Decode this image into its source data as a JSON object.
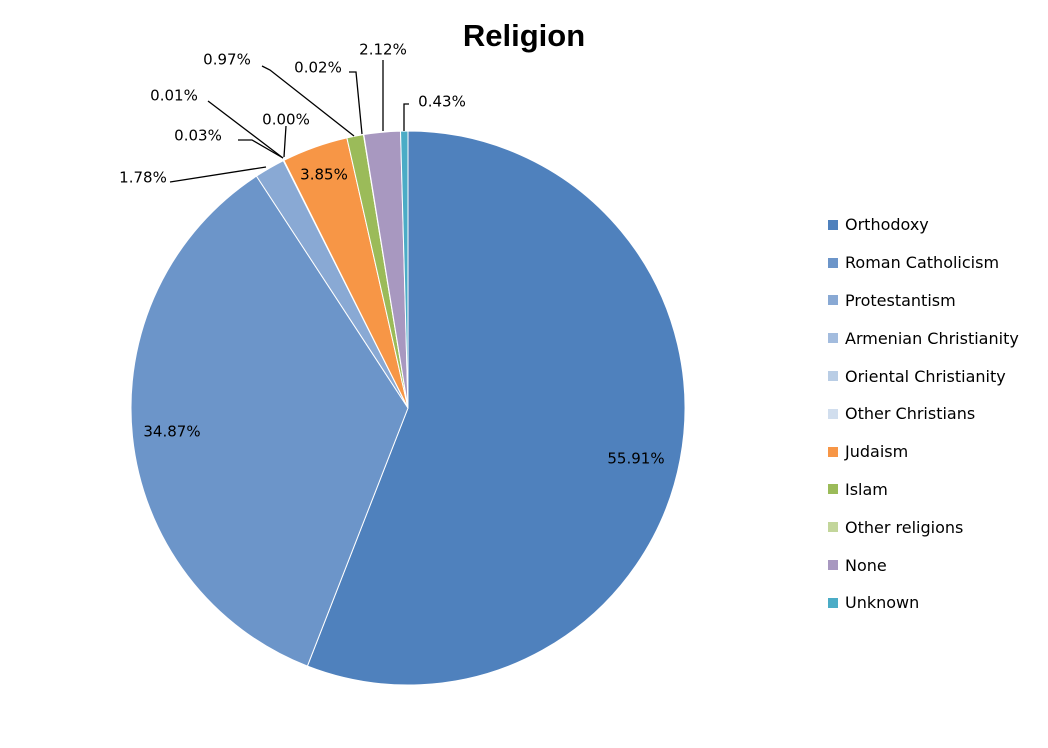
{
  "chart_data": {
    "type": "pie",
    "title": "Religion",
    "legend_position": "right",
    "start_angle": "12 o'clock, clockwise",
    "slices": [
      {
        "label": "Orthodoxy",
        "value": 55.91,
        "value_label": "55.91%",
        "color": "#4F81BD"
      },
      {
        "label": "Roman Catholicism",
        "value": 34.87,
        "value_label": "34.87%",
        "color": "#6C95C9"
      },
      {
        "label": "Protestantism",
        "value": 1.78,
        "value_label": "1.78%",
        "color": "#89A9D4"
      },
      {
        "label": "Armenian Christianity",
        "value": 0.03,
        "value_label": "0.03%",
        "color": "#A3BCDE"
      },
      {
        "label": "Oriental Christianity",
        "value": 0.01,
        "value_label": "0.01%",
        "color": "#B9CDE5"
      },
      {
        "label": "Other Christians",
        "value": 0.0,
        "value_label": "0.00%",
        "color": "#D1DEEE"
      },
      {
        "label": "Judaism",
        "value": 3.85,
        "value_label": "3.85%",
        "color": "#F79646"
      },
      {
        "label": "Islam",
        "value": 0.97,
        "value_label": "0.97%",
        "color": "#9BBB59"
      },
      {
        "label": "Other religions",
        "value": 0.02,
        "value_label": "0.02%",
        "color": "#C3D69B"
      },
      {
        "label": "None",
        "value": 2.12,
        "value_label": "2.12%",
        "color": "#A898C0"
      },
      {
        "label": "Unknown",
        "value": 0.43,
        "value_label": "0.43%",
        "color": "#4BACC6"
      }
    ]
  }
}
